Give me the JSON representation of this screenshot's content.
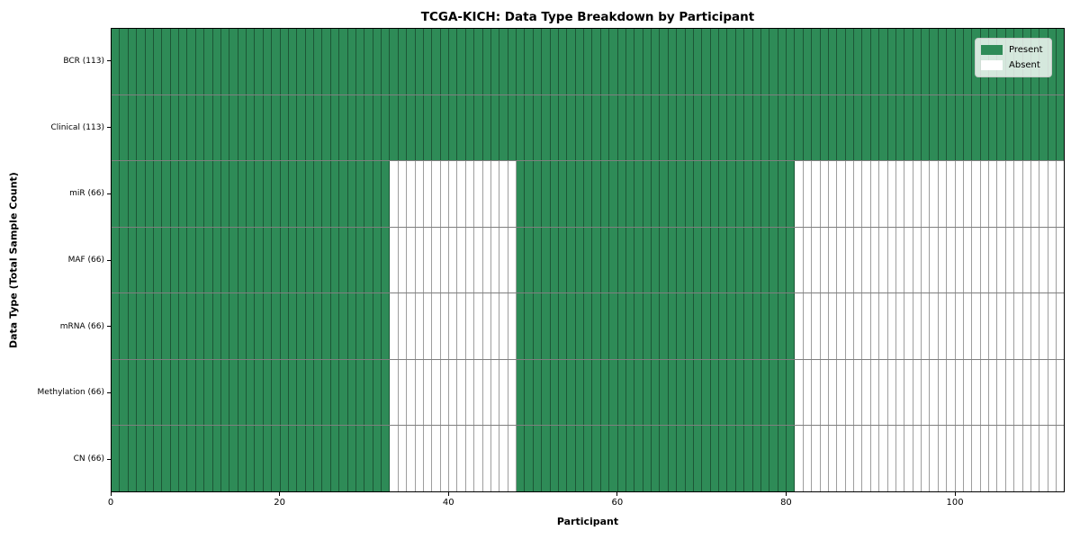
{
  "chart_data": {
    "type": "heatmap",
    "title": "TCGA-KICH: Data Type Breakdown by Participant",
    "xlabel": "Participant",
    "ylabel": "Data Type (Total Sample Count)",
    "x_range": [
      0,
      113
    ],
    "x_ticks": [
      0,
      20,
      40,
      60,
      80,
      100
    ],
    "n_participants": 113,
    "grid": "cell-borders",
    "rows": [
      {
        "label": "BCR (113)",
        "total": 113,
        "present_ranges": [
          [
            0,
            113
          ]
        ]
      },
      {
        "label": "Clinical (113)",
        "total": 113,
        "present_ranges": [
          [
            0,
            113
          ]
        ]
      },
      {
        "label": "miR (66)",
        "total": 66,
        "present_ranges": [
          [
            0,
            33
          ],
          [
            48,
            81
          ]
        ]
      },
      {
        "label": "MAF (66)",
        "total": 66,
        "present_ranges": [
          [
            0,
            33
          ],
          [
            48,
            81
          ]
        ]
      },
      {
        "label": "mRNA (66)",
        "total": 66,
        "present_ranges": [
          [
            0,
            33
          ],
          [
            48,
            81
          ]
        ]
      },
      {
        "label": "Methylation (66)",
        "total": 66,
        "present_ranges": [
          [
            0,
            33
          ],
          [
            48,
            81
          ]
        ]
      },
      {
        "label": "CN (66)",
        "total": 66,
        "present_ranges": [
          [
            0,
            33
          ],
          [
            48,
            81
          ]
        ]
      }
    ],
    "legend": {
      "position": "top-right",
      "entries": [
        {
          "label": "Present",
          "color": "#2e8b57"
        },
        {
          "label": "Absent",
          "color": "#ffffff"
        }
      ]
    },
    "colors": {
      "present": "#2e8b57",
      "absent": "#ffffff",
      "cell_edge": "rgba(0,0,0,0.38)",
      "row_edge": "rgba(0,0,0,0.5)",
      "frame": "#000000",
      "background": "#ffffff"
    }
  }
}
